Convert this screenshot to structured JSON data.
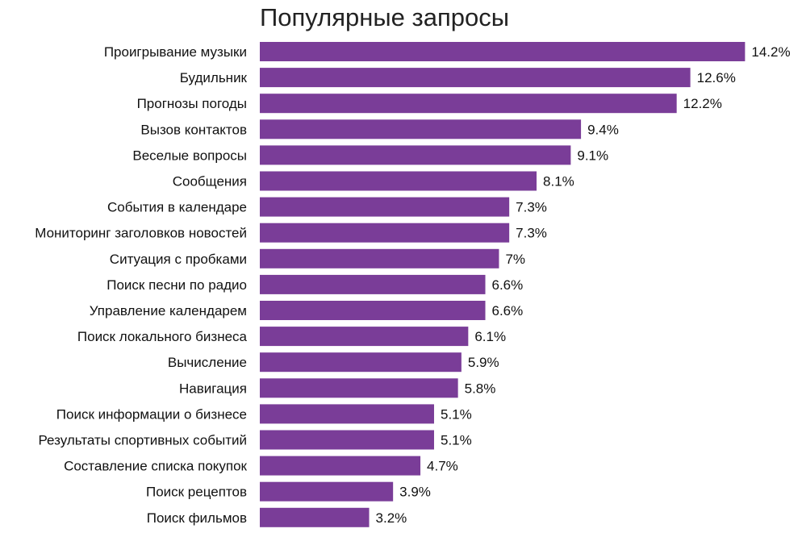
{
  "chart_data": {
    "type": "bar",
    "orientation": "horizontal",
    "title": "Популярные запросы",
    "categories": [
      "Проигрывание музыки",
      "Будильник",
      "Прогнозы погоды",
      "Вызов контактов",
      "Веселые вопросы",
      "Сообщения",
      "События в календаре",
      "Мониторинг заголовков новостей",
      "Ситуация с пробками",
      "Поиск песни по радио",
      "Управление календарем",
      "Поиск локального бизнеса",
      "Вычисление",
      "Навигация",
      "Поиск информации о бизнесе",
      "Результаты спортивных событий",
      "Составление списка покупок",
      "Поиск рецептов",
      "Поиск фильмов"
    ],
    "values": [
      14.2,
      12.6,
      12.2,
      9.4,
      9.1,
      8.1,
      7.3,
      7.3,
      7,
      6.6,
      6.6,
      6.1,
      5.9,
      5.8,
      5.1,
      5.1,
      4.7,
      3.9,
      3.2
    ],
    "value_labels": [
      "14.2%",
      "12.6%",
      "12.2%",
      "9.4%",
      "9.1%",
      "8.1%",
      "7.3%",
      "7.3%",
      "7%",
      "6.6%",
      "6.6%",
      "6.1%",
      "5.9%",
      "5.8%",
      "5.1%",
      "5.1%",
      "4.7%",
      "3.9%",
      "3.2%"
    ],
    "bar_color": "#7a3d98",
    "grid": false,
    "legend": "none"
  }
}
